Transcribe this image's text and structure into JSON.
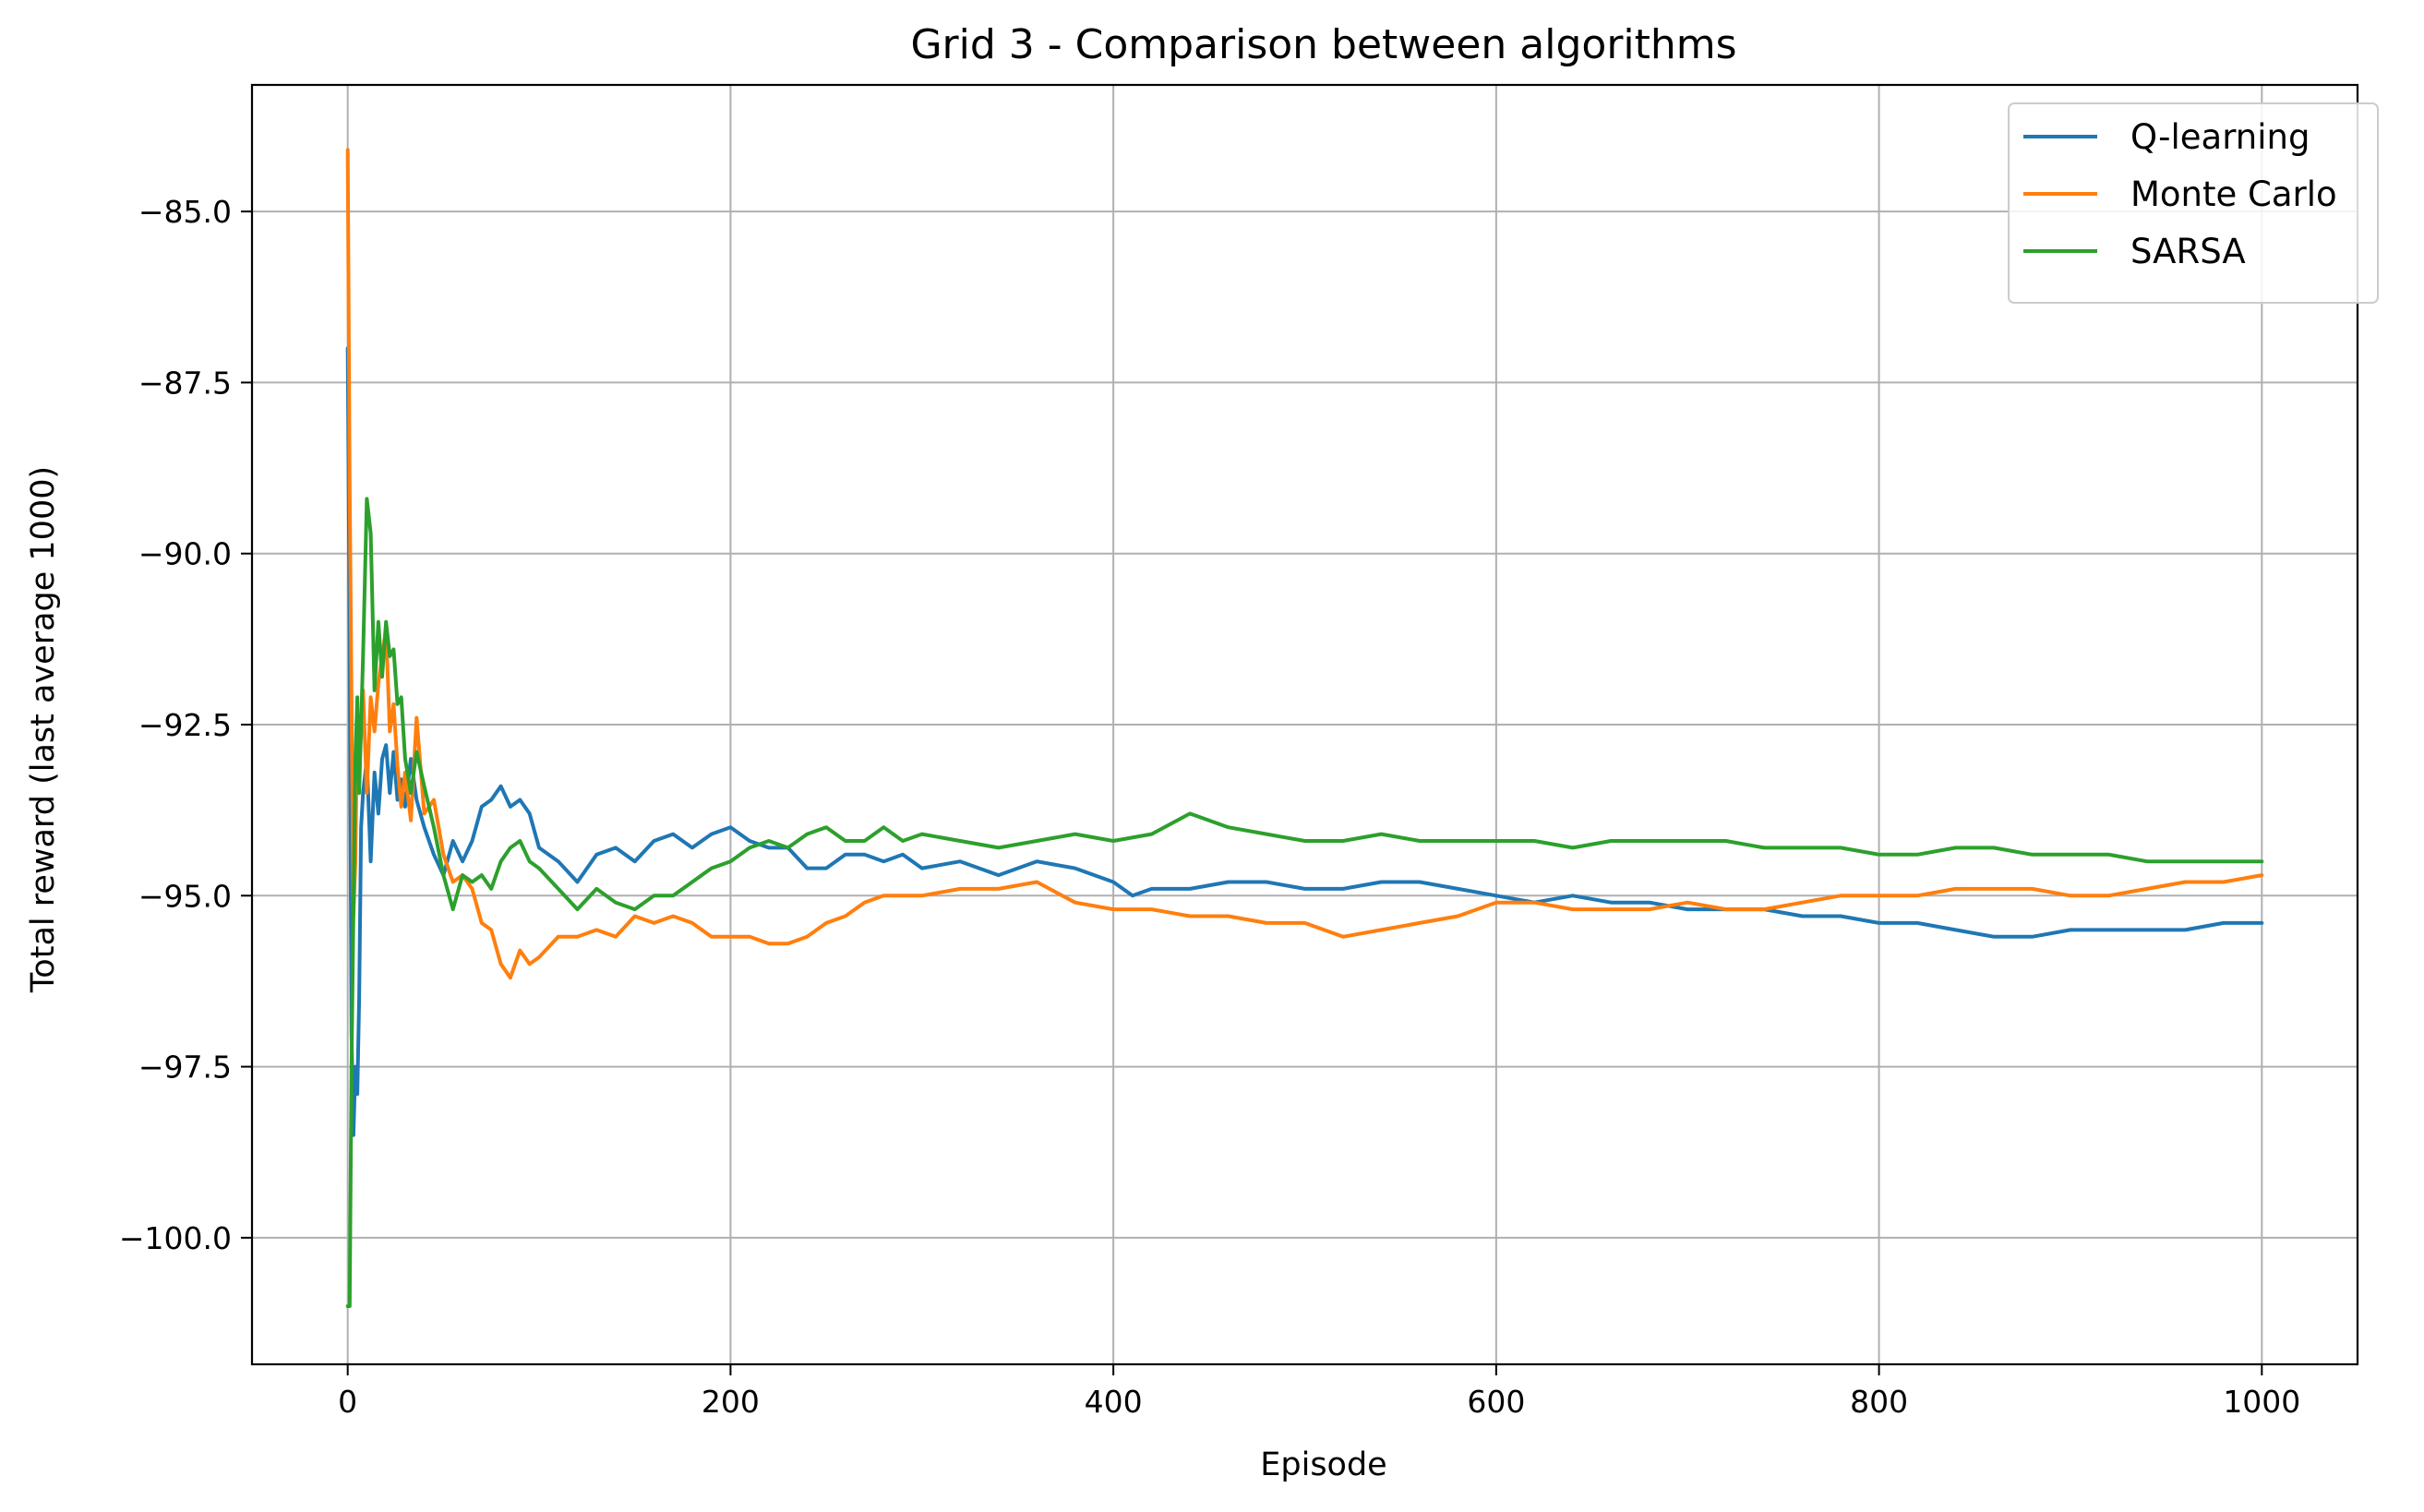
{
  "chart_data": {
    "type": "line",
    "title": "Grid 3 - Comparison between algorithms",
    "xlabel": "Episode",
    "ylabel": "Total reward (last average 1000)",
    "xlim": [
      -50,
      1050
    ],
    "ylim": [
      -101.85,
      -83.15
    ],
    "xticks": [
      0,
      200,
      400,
      600,
      800,
      1000
    ],
    "xtick_labels": [
      "0",
      "200",
      "400",
      "600",
      "800",
      "1000"
    ],
    "yticks": [
      -85.0,
      -87.5,
      -90.0,
      -92.5,
      -95.0,
      -97.5,
      -100.0
    ],
    "ytick_labels": [
      "−85.0",
      "−87.5",
      "−90.0",
      "−92.5",
      "−95.0",
      "−97.5",
      "−100.0"
    ],
    "grid": true,
    "legend_position": "top-right",
    "series": [
      {
        "name": "Q-learning",
        "color": "#1f77b4",
        "x": [
          0,
          1,
          2,
          3,
          4,
          5,
          6,
          7,
          8,
          10,
          12,
          14,
          16,
          18,
          20,
          22,
          24,
          26,
          28,
          30,
          33,
          36,
          40,
          45,
          50,
          55,
          60,
          65,
          70,
          75,
          80,
          85,
          90,
          95,
          100,
          110,
          120,
          130,
          140,
          150,
          160,
          170,
          180,
          190,
          200,
          210,
          220,
          230,
          240,
          250,
          260,
          270,
          280,
          290,
          300,
          320,
          340,
          360,
          380,
          400,
          410,
          420,
          440,
          460,
          480,
          500,
          520,
          540,
          560,
          580,
          600,
          620,
          640,
          660,
          680,
          700,
          720,
          740,
          760,
          780,
          800,
          820,
          840,
          860,
          880,
          900,
          920,
          940,
          960,
          980,
          1000
        ],
        "y": [
          -87.0,
          -91.3,
          -97.0,
          -98.5,
          -97.5,
          -97.9,
          -96.5,
          -94.0,
          -93.5,
          -93.0,
          -94.5,
          -93.2,
          -93.8,
          -93.0,
          -92.8,
          -93.5,
          -92.9,
          -93.6,
          -93.3,
          -93.7,
          -93.0,
          -93.6,
          -94.0,
          -94.4,
          -94.7,
          -94.2,
          -94.5,
          -94.2,
          -93.7,
          -93.6,
          -93.4,
          -93.7,
          -93.6,
          -93.8,
          -94.3,
          -94.5,
          -94.8,
          -94.4,
          -94.3,
          -94.5,
          -94.2,
          -94.1,
          -94.3,
          -94.1,
          -94.0,
          -94.2,
          -94.3,
          -94.3,
          -94.6,
          -94.6,
          -94.4,
          -94.4,
          -94.5,
          -94.4,
          -94.6,
          -94.5,
          -94.7,
          -94.5,
          -94.6,
          -94.8,
          -95.0,
          -94.9,
          -94.9,
          -94.8,
          -94.8,
          -94.9,
          -94.9,
          -94.8,
          -94.8,
          -94.9,
          -95.0,
          -95.1,
          -95.0,
          -95.1,
          -95.1,
          -95.2,
          -95.2,
          -95.2,
          -95.3,
          -95.3,
          -95.4,
          -95.4,
          -95.5,
          -95.6,
          -95.6,
          -95.5,
          -95.5,
          -95.5,
          -95.5,
          -95.4,
          -95.4
        ]
      },
      {
        "name": "Monte Carlo",
        "color": "#ff7f0e",
        "x": [
          0,
          1,
          2,
          3,
          4,
          5,
          6,
          8,
          10,
          12,
          14,
          16,
          18,
          20,
          22,
          24,
          26,
          28,
          30,
          33,
          36,
          40,
          45,
          50,
          55,
          60,
          65,
          70,
          75,
          80,
          85,
          90,
          95,
          100,
          110,
          120,
          130,
          140,
          150,
          160,
          170,
          180,
          190,
          200,
          210,
          220,
          230,
          240,
          250,
          260,
          270,
          280,
          290,
          300,
          320,
          340,
          360,
          380,
          400,
          420,
          440,
          460,
          480,
          500,
          520,
          540,
          560,
          580,
          600,
          620,
          640,
          660,
          680,
          700,
          720,
          740,
          760,
          780,
          800,
          820,
          840,
          860,
          880,
          900,
          920,
          940,
          960,
          980,
          1000
        ],
        "y": [
          -84.1,
          -89.0,
          -92.1,
          -95.3,
          -94.5,
          -92.4,
          -93.2,
          -92.0,
          -93.5,
          -92.1,
          -92.6,
          -91.9,
          -91.5,
          -91.1,
          -92.6,
          -92.2,
          -93.1,
          -93.7,
          -93.2,
          -93.9,
          -92.4,
          -93.8,
          -93.6,
          -94.4,
          -94.8,
          -94.7,
          -94.9,
          -95.4,
          -95.5,
          -96.0,
          -96.2,
          -95.8,
          -96.0,
          -95.9,
          -95.6,
          -95.6,
          -95.5,
          -95.6,
          -95.3,
          -95.4,
          -95.3,
          -95.4,
          -95.6,
          -95.6,
          -95.6,
          -95.7,
          -95.7,
          -95.6,
          -95.4,
          -95.3,
          -95.1,
          -95.0,
          -95.0,
          -95.0,
          -94.9,
          -94.9,
          -94.8,
          -95.1,
          -95.2,
          -95.2,
          -95.3,
          -95.3,
          -95.4,
          -95.4,
          -95.6,
          -95.5,
          -95.4,
          -95.3,
          -95.1,
          -95.1,
          -95.2,
          -95.2,
          -95.2,
          -95.1,
          -95.2,
          -95.2,
          -95.1,
          -95.0,
          -95.0,
          -95.0,
          -94.9,
          -94.9,
          -94.9,
          -95.0,
          -95.0,
          -94.9,
          -94.8,
          -94.8,
          -94.7
        ]
      },
      {
        "name": "SARSA",
        "color": "#2ca02c",
        "x": [
          0,
          1,
          2,
          3,
          4,
          5,
          6,
          8,
          10,
          12,
          14,
          16,
          18,
          20,
          22,
          24,
          26,
          28,
          30,
          33,
          36,
          40,
          45,
          50,
          55,
          60,
          65,
          70,
          75,
          80,
          85,
          90,
          95,
          100,
          110,
          120,
          130,
          140,
          150,
          160,
          170,
          180,
          190,
          200,
          210,
          220,
          230,
          240,
          250,
          260,
          270,
          280,
          290,
          300,
          320,
          340,
          360,
          380,
          400,
          420,
          440,
          460,
          480,
          500,
          520,
          540,
          560,
          580,
          600,
          620,
          640,
          660,
          680,
          700,
          720,
          740,
          760,
          780,
          800,
          820,
          840,
          860,
          880,
          900,
          920,
          940,
          960,
          980,
          1000
        ],
        "y": [
          -101.0,
          -101.0,
          -97.5,
          -95.2,
          -93.0,
          -92.1,
          -93.5,
          -91.5,
          -89.2,
          -89.7,
          -92.0,
          -91.0,
          -91.8,
          -91.0,
          -91.5,
          -91.4,
          -92.2,
          -92.1,
          -93.0,
          -93.5,
          -92.9,
          -93.4,
          -94.0,
          -94.7,
          -95.2,
          -94.7,
          -94.8,
          -94.7,
          -94.9,
          -94.5,
          -94.3,
          -94.2,
          -94.5,
          -94.6,
          -94.9,
          -95.2,
          -94.9,
          -95.1,
          -95.2,
          -95.0,
          -95.0,
          -94.8,
          -94.6,
          -94.5,
          -94.3,
          -94.2,
          -94.3,
          -94.1,
          -94.0,
          -94.2,
          -94.2,
          -94.0,
          -94.2,
          -94.1,
          -94.2,
          -94.3,
          -94.2,
          -94.1,
          -94.2,
          -94.1,
          -93.8,
          -94.0,
          -94.1,
          -94.2,
          -94.2,
          -94.1,
          -94.2,
          -94.2,
          -94.2,
          -94.2,
          -94.3,
          -94.2,
          -94.2,
          -94.2,
          -94.2,
          -94.3,
          -94.3,
          -94.3,
          -94.4,
          -94.4,
          -94.3,
          -94.3,
          -94.4,
          -94.4,
          -94.4,
          -94.5,
          -94.5,
          -94.5,
          -94.5
        ]
      }
    ]
  }
}
